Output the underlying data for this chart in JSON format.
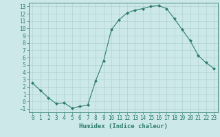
{
  "x": [
    0,
    1,
    2,
    3,
    4,
    5,
    6,
    7,
    8,
    9,
    10,
    11,
    12,
    13,
    14,
    15,
    16,
    17,
    18,
    19,
    20,
    21,
    22,
    23
  ],
  "y": [
    2.5,
    1.5,
    0.5,
    -0.3,
    -0.2,
    -0.9,
    -0.7,
    -0.5,
    2.8,
    5.5,
    9.8,
    11.2,
    12.1,
    12.5,
    12.7,
    13.0,
    13.1,
    12.7,
    11.3,
    9.8,
    8.3,
    6.3,
    5.3,
    4.5
  ],
  "line_color": "#2e7d6e",
  "marker": "D",
  "marker_size": 2.0,
  "bg_color": "#cce8e8",
  "grid_color": "#aacccc",
  "xlabel": "Humidex (Indice chaleur)",
  "xlabel_fontsize": 6.5,
  "tick_fontsize": 5.5,
  "ylim": [
    -1.5,
    13.5
  ],
  "xlim": [
    -0.5,
    23.5
  ],
  "yticks": [
    -1,
    0,
    1,
    2,
    3,
    4,
    5,
    6,
    7,
    8,
    9,
    10,
    11,
    12,
    13
  ],
  "xticks": [
    0,
    1,
    2,
    3,
    4,
    5,
    6,
    7,
    8,
    9,
    10,
    11,
    12,
    13,
    14,
    15,
    16,
    17,
    18,
    19,
    20,
    21,
    22,
    23
  ]
}
